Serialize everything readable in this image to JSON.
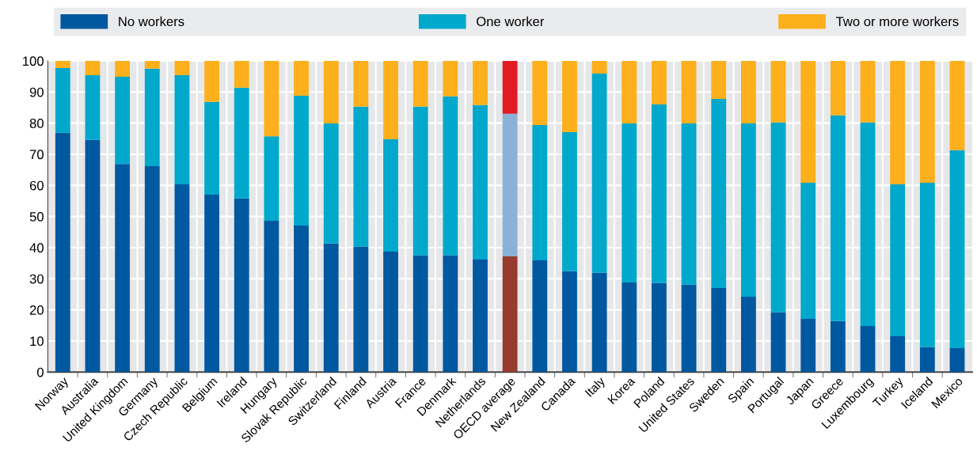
{
  "chart_data": {
    "type": "bar",
    "stacked": true,
    "categories": [
      "Norway",
      "Australia",
      "United Kingdom",
      "Germany",
      "Czech Republic",
      "Belgium",
      "Ireland",
      "Hungary",
      "Slovak Republic",
      "Switzerland",
      "Finland",
      "Austria",
      "France",
      "Denmark",
      "Netherlands",
      "OECD average",
      "New Zealand",
      "Canada",
      "Italy",
      "Korea",
      "Poland",
      "United States",
      "Sweden",
      "Spain",
      "Portugal",
      "Japan",
      "Greece",
      "Luxembourg",
      "Turkey",
      "Iceland",
      "Mexico"
    ],
    "series": [
      {
        "name": "No workers",
        "color": "#0058a0",
        "colors": [
          "#0058a0",
          "#0058a0",
          "#0058a0",
          "#0058a0",
          "#0058a0",
          "#0058a0",
          "#0058a0",
          "#0058a0",
          "#0058a0",
          "#0058a0",
          "#0058a0",
          "#0058a0",
          "#0058a0",
          "#0058a0",
          "#0058a0",
          "#963c2e",
          "#0058a0",
          "#0058a0",
          "#0058a0",
          "#0058a0",
          "#0058a0",
          "#0058a0",
          "#0058a0",
          "#0058a0",
          "#0058a0",
          "#0058a0",
          "#0058a0",
          "#0058a0",
          "#0058a0",
          "#0058a0",
          "#0058a0"
        ],
        "values": [
          76.9,
          74.6,
          66.9,
          66.2,
          60.3,
          57.0,
          55.8,
          48.6,
          47.1,
          41.3,
          40.3,
          38.7,
          37.5,
          37.5,
          36.2,
          37.2,
          35.9,
          32.4,
          31.9,
          28.8,
          28.6,
          28.1,
          27.0,
          24.2,
          19.2,
          17.1,
          16.4,
          14.8,
          11.5,
          8.0,
          7.7
        ]
      },
      {
        "name": "One worker",
        "color": "#00a8cc",
        "colors": [
          "#00a8cc",
          "#00a8cc",
          "#00a8cc",
          "#00a8cc",
          "#00a8cc",
          "#00a8cc",
          "#00a8cc",
          "#00a8cc",
          "#00a8cc",
          "#00a8cc",
          "#00a8cc",
          "#00a8cc",
          "#00a8cc",
          "#00a8cc",
          "#00a8cc",
          "#8bb1d6",
          "#00a8cc",
          "#00a8cc",
          "#00a8cc",
          "#00a8cc",
          "#00a8cc",
          "#00a8cc",
          "#00a8cc",
          "#00a8cc",
          "#00a8cc",
          "#00a8cc",
          "#00a8cc",
          "#00a8cc",
          "#00a8cc",
          "#00a8cc",
          "#00a8cc"
        ],
        "values": [
          20.8,
          20.8,
          28.0,
          31.3,
          35.1,
          29.8,
          35.6,
          27.2,
          41.7,
          38.6,
          45.0,
          36.1,
          47.8,
          51.1,
          49.6,
          45.8,
          43.5,
          44.7,
          64.0,
          51.1,
          57.4,
          51.8,
          60.8,
          55.7,
          61.0,
          43.7,
          66.1,
          65.4,
          48.8,
          52.8,
          63.6
        ]
      },
      {
        "name": "Two or more workers",
        "color": "#fdb01b",
        "colors": [
          "#fdb01b",
          "#fdb01b",
          "#fdb01b",
          "#fdb01b",
          "#fdb01b",
          "#fdb01b",
          "#fdb01b",
          "#fdb01b",
          "#fdb01b",
          "#fdb01b",
          "#fdb01b",
          "#fdb01b",
          "#fdb01b",
          "#fdb01b",
          "#fdb01b",
          "#e01b24",
          "#fdb01b",
          "#fdb01b",
          "#fdb01b",
          "#fdb01b",
          "#fdb01b",
          "#fdb01b",
          "#fdb01b",
          "#fdb01b",
          "#fdb01b",
          "#fdb01b",
          "#fdb01b",
          "#fdb01b",
          "#fdb01b",
          "#fdb01b",
          "#fdb01b"
        ],
        "values": [
          2.3,
          4.6,
          5.1,
          2.5,
          4.6,
          13.2,
          8.6,
          24.2,
          11.2,
          20.1,
          14.7,
          25.2,
          14.7,
          11.4,
          14.2,
          17.0,
          20.6,
          22.9,
          4.1,
          20.1,
          14.0,
          20.1,
          12.2,
          20.1,
          19.8,
          39.2,
          17.5,
          19.8,
          39.7,
          39.2,
          28.7
        ]
      }
    ],
    "ylim": [
      0,
      100
    ],
    "yticks": [
      0,
      10,
      20,
      30,
      40,
      50,
      60,
      70,
      80,
      90,
      100
    ],
    "grid": true,
    "legend": "top"
  }
}
